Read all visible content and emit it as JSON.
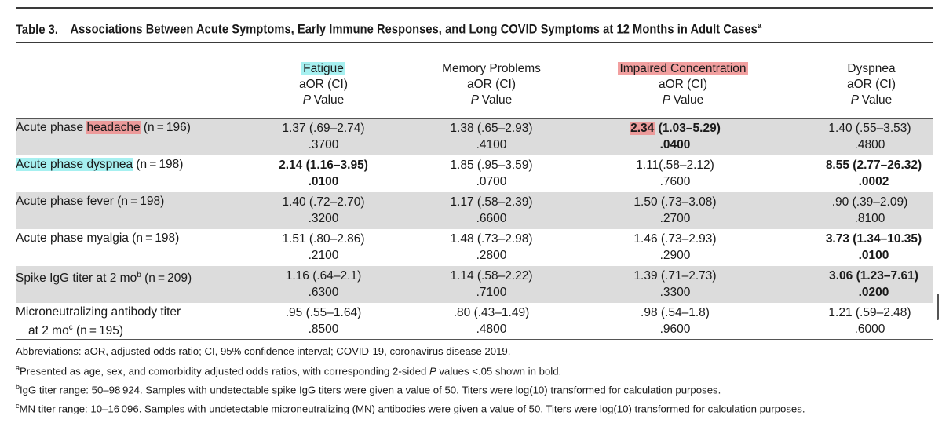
{
  "table": {
    "label": "Table 3.",
    "title": "Associations Between Acute Symptoms, Early Immune Responses, and Long COVID Symptoms at 12 Months in Adult Cases",
    "title_sup": "a"
  },
  "columns": [
    {
      "name": "Fatigue",
      "stat": "aOR (CI)",
      "p": "P",
      "pvalue": "Value"
    },
    {
      "name": "Memory Problems",
      "stat": "aOR (CI)",
      "p": "P",
      "pvalue": "Value"
    },
    {
      "name": "Impaired Concentration",
      "stat": "aOR (CI)",
      "p": "P",
      "pvalue": "Value"
    },
    {
      "name": "Dyspnea",
      "stat": "aOR (CI)",
      "p": "P",
      "pvalue": "Value"
    }
  ],
  "rows": [
    {
      "pre": "Acute phase ",
      "hl": "headache",
      "post": " (n = 196)",
      "cells": [
        {
          "aor": "1.37 (.69–2.74)",
          "p": ".3700"
        },
        {
          "aor": "1.38 (.65–2.93)",
          "p": ".4100"
        },
        {
          "aor_main": "2.34",
          "aor_rest": " (1.03–5.29)",
          "p": ".0400"
        },
        {
          "aor": "1.40 (.55–3.53)",
          "p": ".4800"
        }
      ]
    },
    {
      "label": "Acute phase dyspnea",
      "post": " (n = 198)",
      "cells": [
        {
          "aor": "2.14 (1.16–3.95)",
          "p": ".0100"
        },
        {
          "aor": "1.85 (.95–3.59)",
          "p": ".0700"
        },
        {
          "aor": "1.11(.58–2.12)",
          "p": ".7600"
        },
        {
          "aor": "8.55 (2.77–26.32)",
          "p": ".0002"
        }
      ]
    },
    {
      "label": "Acute phase fever (n = 198)",
      "cells": [
        {
          "aor": "1.40 (.72–2.70)",
          "p": ".3200"
        },
        {
          "aor": "1.17 (.58–2.39)",
          "p": ".6600"
        },
        {
          "aor": "1.50 (.73–3.08)",
          "p": ".2700"
        },
        {
          "aor": ".90 (.39–2.09)",
          "p": ".8100"
        }
      ]
    },
    {
      "label": "Acute phase myalgia (n = 198)",
      "cells": [
        {
          "aor": "1.51 (.80–2.86)",
          "p": ".2100"
        },
        {
          "aor": "1.48 (.73–2.98)",
          "p": ".2800"
        },
        {
          "aor": "1.46 (.73–2.93)",
          "p": ".2900"
        },
        {
          "aor": "3.73 (1.34–10.35)",
          "p": ".0100"
        }
      ]
    },
    {
      "label": "Spike IgG titer at 2 mo",
      "sup": "b",
      "post": " (n = 209)",
      "cells": [
        {
          "aor": "1.16 (.64–2.1)",
          "p": ".6300"
        },
        {
          "aor": "1.14 (.58–2.22)",
          "p": ".7100"
        },
        {
          "aor": "1.39 (.71–2.73)",
          "p": ".3300"
        },
        {
          "aor": "3.06 (1.23–7.61)",
          "p": ".0200"
        }
      ]
    },
    {
      "label": "Microneutralizing antibody titer",
      "label2": "at 2 mo",
      "sup": "c",
      "post": " (n = 195)",
      "cells": [
        {
          "aor": ".95 (.55–1.64)",
          "p": ".8500"
        },
        {
          "aor": ".80 (.43–1.49)",
          "p": ".4800"
        },
        {
          "aor": ".98 (.54–1.8)",
          "p": ".9600"
        },
        {
          "aor": "1.21 (.59–2.48)",
          "p": ".6000"
        }
      ]
    }
  ],
  "footnotes": {
    "abbrev": "Abbreviations: aOR, adjusted odds ratio; CI, 95% confidence interval; COVID-19, coronavirus disease 2019.",
    "a_mark": "a",
    "a_pre": "Presented as age, sex, and comorbidity adjusted odds ratios, with corresponding 2-sided ",
    "a_italic": "P",
    "a_post": " values <.05 shown in bold.",
    "b_mark": "b",
    "b_text": "IgG titer range: 50–98 924. Samples with undetectable spike IgG titers were given a value of 50. Titers were log(10) transformed for calculation purposes.",
    "c_mark": "c",
    "c_text": "MN titer range: 10–16 096. Samples with undetectable microneutralizing (MN) antibodies were given a value of 50. Titers were log(10) transformed for calculation purposes."
  },
  "colors": {
    "highlight_cyan": "#a6f0f0",
    "highlight_pink": "#ec9a9a",
    "row_shade": "#dcdcdc"
  }
}
